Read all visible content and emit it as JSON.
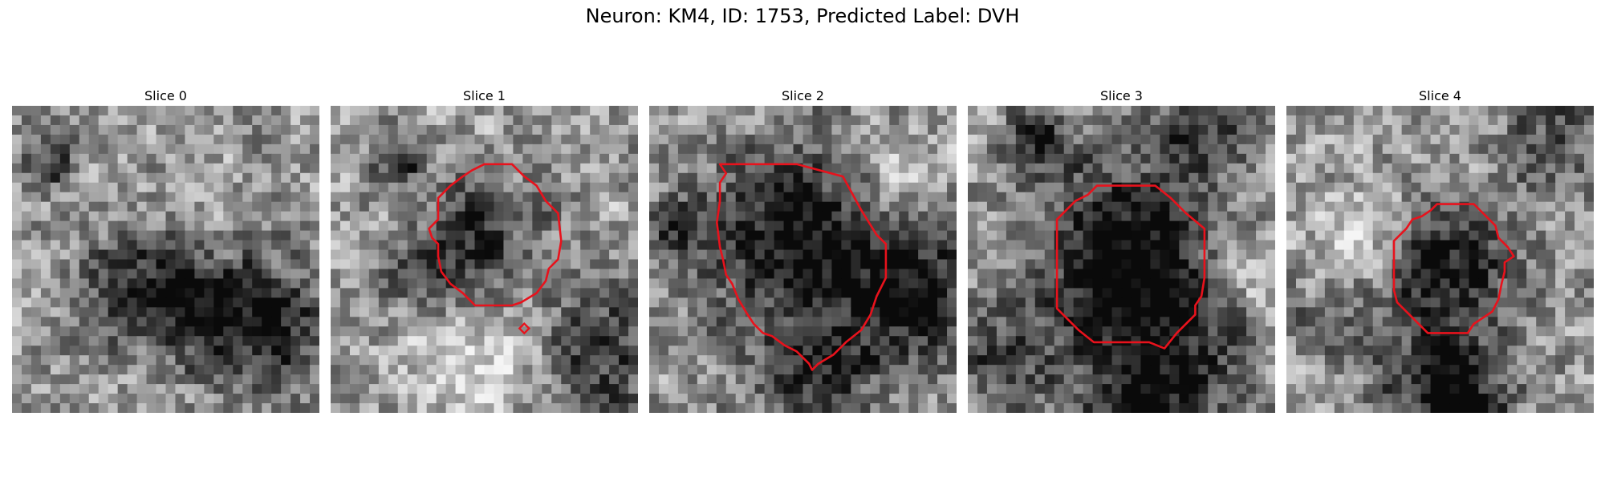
{
  "figure": {
    "title": "Neuron: KM4, ID: 1753, Predicted Label: DVH"
  },
  "colors": {
    "contour": "#e8121c"
  },
  "panels": [
    {
      "title": "Slice 0",
      "seed": 11,
      "blobs": [
        [
          0.4,
          0.6,
          0.13,
          -0.55
        ],
        [
          0.8,
          0.7,
          0.16,
          -0.62
        ],
        [
          0.12,
          0.18,
          0.07,
          -0.45
        ],
        [
          0.6,
          0.62,
          0.1,
          -0.25
        ]
      ],
      "contour": [],
      "small_marker": false
    },
    {
      "title": "Slice 1",
      "seed": 29,
      "blobs": [
        [
          0.5,
          0.43,
          0.15,
          -0.42
        ],
        [
          0.23,
          0.17,
          0.06,
          -0.55
        ],
        [
          0.3,
          0.57,
          0.1,
          -0.35
        ],
        [
          0.86,
          0.8,
          0.15,
          -0.48
        ],
        [
          0.5,
          0.8,
          0.18,
          0.28
        ]
      ],
      "contour": [
        [
          0.5,
          0.19
        ],
        [
          0.59,
          0.19
        ],
        [
          0.63,
          0.23
        ],
        [
          0.67,
          0.26
        ],
        [
          0.7,
          0.31
        ],
        [
          0.74,
          0.35
        ],
        [
          0.75,
          0.44
        ],
        [
          0.74,
          0.5
        ],
        [
          0.71,
          0.53
        ],
        [
          0.7,
          0.57
        ],
        [
          0.67,
          0.61
        ],
        [
          0.62,
          0.64
        ],
        [
          0.59,
          0.65
        ],
        [
          0.53,
          0.65
        ],
        [
          0.47,
          0.65
        ],
        [
          0.43,
          0.61
        ],
        [
          0.39,
          0.58
        ],
        [
          0.36,
          0.54
        ],
        [
          0.35,
          0.49
        ],
        [
          0.35,
          0.45
        ],
        [
          0.33,
          0.43
        ],
        [
          0.32,
          0.4
        ],
        [
          0.35,
          0.37
        ],
        [
          0.35,
          0.3
        ],
        [
          0.39,
          0.26
        ],
        [
          0.43,
          0.23
        ],
        [
          0.46,
          0.21
        ]
      ],
      "small_marker": true
    },
    {
      "title": "Slice 2",
      "seed": 47,
      "blobs": [
        [
          0.5,
          0.43,
          0.22,
          -0.62
        ],
        [
          0.9,
          0.62,
          0.14,
          -0.6
        ],
        [
          0.55,
          0.88,
          0.14,
          -0.45
        ],
        [
          0.1,
          0.42,
          0.08,
          -0.35
        ],
        [
          0.78,
          0.22,
          0.1,
          0.25
        ]
      ],
      "contour": [
        [
          0.23,
          0.19
        ],
        [
          0.48,
          0.19
        ],
        [
          0.63,
          0.23
        ],
        [
          0.69,
          0.34
        ],
        [
          0.74,
          0.42
        ],
        [
          0.77,
          0.45
        ],
        [
          0.77,
          0.56
        ],
        [
          0.74,
          0.62
        ],
        [
          0.72,
          0.68
        ],
        [
          0.69,
          0.73
        ],
        [
          0.64,
          0.77
        ],
        [
          0.6,
          0.81
        ],
        [
          0.55,
          0.84
        ],
        [
          0.53,
          0.86
        ],
        [
          0.52,
          0.84
        ],
        [
          0.48,
          0.8
        ],
        [
          0.44,
          0.78
        ],
        [
          0.4,
          0.75
        ],
        [
          0.37,
          0.74
        ],
        [
          0.34,
          0.71
        ],
        [
          0.32,
          0.68
        ],
        [
          0.29,
          0.63
        ],
        [
          0.27,
          0.58
        ],
        [
          0.25,
          0.55
        ],
        [
          0.24,
          0.5
        ],
        [
          0.23,
          0.46
        ],
        [
          0.22,
          0.38
        ],
        [
          0.23,
          0.31
        ],
        [
          0.23,
          0.25
        ],
        [
          0.25,
          0.22
        ]
      ],
      "small_marker": false
    },
    {
      "title": "Slice 3",
      "seed": 73,
      "blobs": [
        [
          0.52,
          0.5,
          0.21,
          -0.7
        ],
        [
          0.22,
          0.12,
          0.08,
          -0.45
        ],
        [
          0.76,
          0.05,
          0.12,
          -0.45
        ],
        [
          0.62,
          0.92,
          0.2,
          -0.52
        ],
        [
          0.12,
          0.82,
          0.1,
          -0.4
        ],
        [
          0.92,
          0.55,
          0.1,
          0.25
        ]
      ],
      "contour": [
        [
          0.42,
          0.26
        ],
        [
          0.61,
          0.26
        ],
        [
          0.66,
          0.3
        ],
        [
          0.71,
          0.35
        ],
        [
          0.77,
          0.4
        ],
        [
          0.77,
          0.56
        ],
        [
          0.76,
          0.62
        ],
        [
          0.74,
          0.65
        ],
        [
          0.74,
          0.68
        ],
        [
          0.72,
          0.7
        ],
        [
          0.68,
          0.74
        ],
        [
          0.64,
          0.79
        ],
        [
          0.59,
          0.77
        ],
        [
          0.55,
          0.77
        ],
        [
          0.48,
          0.77
        ],
        [
          0.41,
          0.77
        ],
        [
          0.36,
          0.73
        ],
        [
          0.32,
          0.69
        ],
        [
          0.29,
          0.66
        ],
        [
          0.29,
          0.58
        ],
        [
          0.29,
          0.37
        ],
        [
          0.32,
          0.34
        ],
        [
          0.35,
          0.31
        ],
        [
          0.39,
          0.29
        ]
      ],
      "small_marker": false
    },
    {
      "title": "Slice 4",
      "seed": 97,
      "blobs": [
        [
          0.52,
          0.52,
          0.16,
          -0.55
        ],
        [
          0.52,
          0.95,
          0.16,
          -0.62
        ],
        [
          0.88,
          0.15,
          0.12,
          -0.35
        ],
        [
          0.1,
          0.72,
          0.08,
          -0.3
        ],
        [
          0.28,
          0.4,
          0.1,
          0.3
        ]
      ],
      "contour": [
        [
          0.49,
          0.32
        ],
        [
          0.61,
          0.32
        ],
        [
          0.64,
          0.35
        ],
        [
          0.68,
          0.39
        ],
        [
          0.69,
          0.43
        ],
        [
          0.72,
          0.46
        ],
        [
          0.74,
          0.49
        ],
        [
          0.71,
          0.51
        ],
        [
          0.71,
          0.54
        ],
        [
          0.7,
          0.58
        ],
        [
          0.69,
          0.63
        ],
        [
          0.67,
          0.67
        ],
        [
          0.64,
          0.69
        ],
        [
          0.61,
          0.71
        ],
        [
          0.59,
          0.74
        ],
        [
          0.52,
          0.74
        ],
        [
          0.46,
          0.74
        ],
        [
          0.42,
          0.7
        ],
        [
          0.39,
          0.67
        ],
        [
          0.36,
          0.64
        ],
        [
          0.35,
          0.6
        ],
        [
          0.35,
          0.52
        ],
        [
          0.35,
          0.44
        ],
        [
          0.39,
          0.4
        ],
        [
          0.41,
          0.37
        ],
        [
          0.44,
          0.36
        ],
        [
          0.47,
          0.34
        ]
      ],
      "small_marker": false
    }
  ]
}
